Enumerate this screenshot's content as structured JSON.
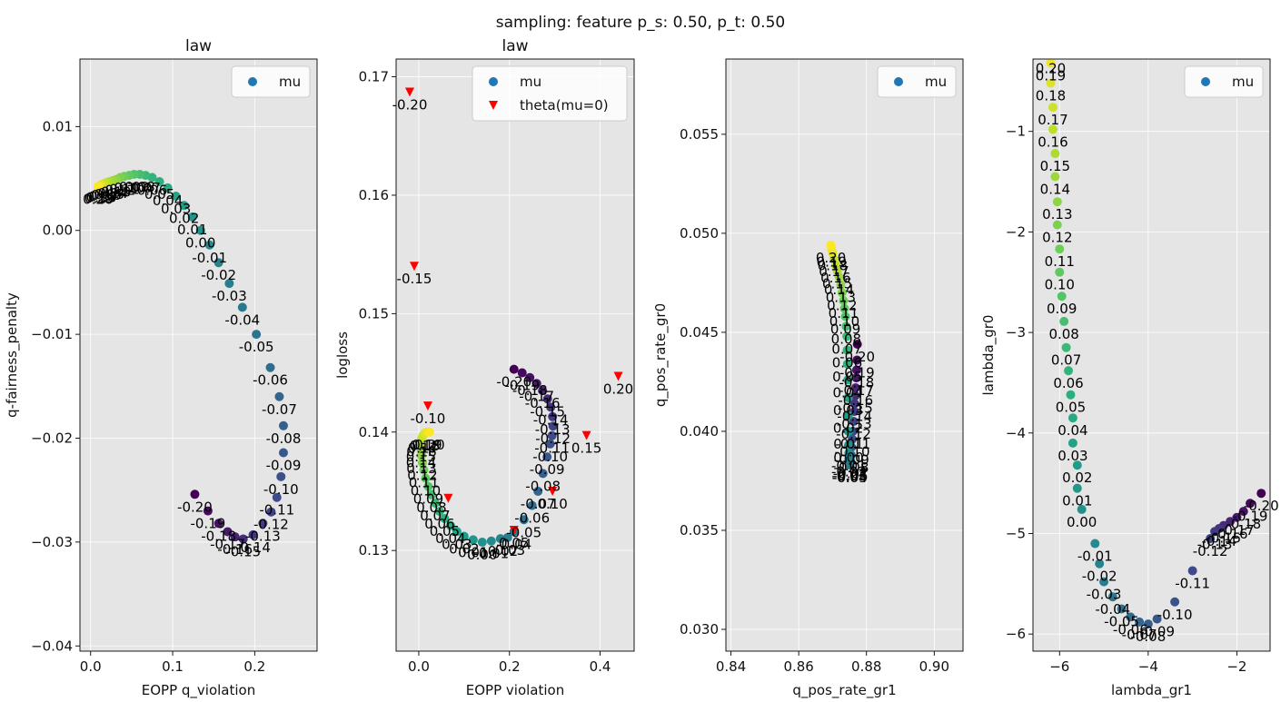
{
  "suptitle": "sampling: feature p_s: 0.50, p_t: 0.50",
  "colors": {
    "panel_bg": "#e5e5e5",
    "grid": "#ffffff",
    "legend_mu": "#1f77b4",
    "theta": "#ff0000",
    "colormap": "viridis"
  },
  "chart_data": [
    {
      "type": "scatter",
      "title": "law",
      "xlabel": "EOPP q_violation",
      "ylabel": "q-fairness_penalty",
      "xlim": [
        -0.013,
        0.276
      ],
      "ylim": [
        -0.0405,
        0.0165
      ],
      "xticks": [
        0.0,
        0.1,
        0.2
      ],
      "xticklabels": [
        "0.0",
        "0.1",
        "0.2"
      ],
      "yticks": [
        -0.04,
        -0.03,
        -0.02,
        -0.01,
        0.0,
        0.01
      ],
      "yticklabels": [
        "−0.04",
        "−0.03",
        "−0.02",
        "−0.01",
        "0.00",
        "0.01"
      ],
      "grid": true,
      "legend": {
        "location": "upper right",
        "entries": [
          "mu"
        ]
      },
      "series": [
        {
          "name": "mu",
          "marker": "circle",
          "mu": [
            -0.2,
            -0.19,
            -0.18,
            -0.17,
            -0.16,
            -0.15,
            -0.14,
            -0.13,
            -0.12,
            -0.11,
            -0.1,
            -0.09,
            -0.08,
            -0.07,
            -0.06,
            -0.05,
            -0.04,
            -0.03,
            -0.02,
            -0.01,
            0.0,
            0.01,
            0.02,
            0.03,
            0.04,
            0.05,
            0.06,
            0.07,
            0.08,
            0.09,
            0.1,
            0.11,
            0.12,
            0.13,
            0.14,
            0.15,
            0.16,
            0.17,
            0.18,
            0.19,
            0.2
          ],
          "x": [
            0.127,
            0.143,
            0.156,
            0.167,
            0.176,
            0.186,
            0.198,
            0.21,
            0.22,
            0.227,
            0.232,
            0.235,
            0.235,
            0.23,
            0.219,
            0.202,
            0.185,
            0.169,
            0.156,
            0.145,
            0.134,
            0.124,
            0.114,
            0.104,
            0.094,
            0.084,
            0.075,
            0.067,
            0.06,
            0.053,
            0.047,
            0.041,
            0.036,
            0.031,
            0.027,
            0.023,
            0.019,
            0.016,
            0.013,
            0.011,
            0.009
          ],
          "y": [
            -0.0254,
            -0.027,
            -0.0282,
            -0.029,
            -0.0295,
            -0.0297,
            -0.0293,
            -0.0282,
            -0.0271,
            -0.0257,
            -0.0237,
            -0.0214,
            -0.0188,
            -0.016,
            -0.0132,
            -0.01,
            -0.0074,
            -0.0051,
            -0.0031,
            -0.0014,
            0.0,
            0.0013,
            0.0024,
            0.0033,
            0.0041,
            0.0047,
            0.0051,
            0.0053,
            0.0054,
            0.0054,
            0.0053,
            0.0052,
            0.0051,
            0.0049,
            0.0048,
            0.0047,
            0.0046,
            0.0045,
            0.0044,
            0.0043,
            0.0042
          ],
          "labels": [
            "-0.20",
            "-0.19",
            "-0.18",
            "-0.17",
            "-0.16",
            "-0.15",
            "-0.14",
            "-0.13",
            "-0.12",
            "-0.11",
            "-0.10",
            "-0.09",
            "-0.08",
            "-0.07",
            "-0.06",
            "-0.05",
            "-0.04",
            "-0.03",
            "-0.02",
            "-0.01",
            "0.00",
            "0.01",
            "0.02",
            "0.03",
            "0.04",
            "0.05",
            "0.06",
            "0.07",
            "0.08",
            "0.09",
            "0.10",
            "0.11",
            "0.12",
            "0.13",
            "0.14",
            "0.15",
            "0.16",
            "0.17",
            "0.18",
            "0.19",
            "0.20"
          ]
        }
      ]
    },
    {
      "type": "scatter",
      "title": "law",
      "xlabel": "EOPP violation",
      "ylabel": "logloss",
      "xlim": [
        -0.05,
        0.475
      ],
      "ylim": [
        0.1215,
        0.1715
      ],
      "xticks": [
        0.0,
        0.2,
        0.4
      ],
      "xticklabels": [
        "0.0",
        "0.2",
        "0.4"
      ],
      "yticks": [
        0.13,
        0.14,
        0.15,
        0.16,
        0.17
      ],
      "yticklabels": [
        "0.13",
        "0.14",
        "0.15",
        "0.16",
        "0.17"
      ],
      "grid": true,
      "legend": {
        "location": "upper right",
        "entries": [
          "mu",
          "theta(mu=0)"
        ]
      },
      "series": [
        {
          "name": "mu",
          "marker": "circle",
          "mu": [
            -0.2,
            -0.19,
            -0.18,
            -0.17,
            -0.16,
            -0.15,
            -0.14,
            -0.13,
            -0.12,
            -0.11,
            -0.1,
            -0.09,
            -0.08,
            -0.07,
            -0.06,
            -0.05,
            -0.04,
            -0.03,
            -0.02,
            -0.01,
            0.0,
            0.01,
            0.02,
            0.03,
            0.04,
            0.05,
            0.06,
            0.07,
            0.08,
            0.09,
            0.1,
            0.11,
            0.12,
            0.13,
            0.14,
            0.15,
            0.16,
            0.17,
            0.18,
            0.19,
            0.2
          ],
          "x": [
            0.21,
            0.228,
            0.245,
            0.26,
            0.273,
            0.284,
            0.291,
            0.295,
            0.296,
            0.294,
            0.29,
            0.283,
            0.274,
            0.263,
            0.25,
            0.232,
            0.21,
            0.196,
            0.18,
            0.16,
            0.14,
            0.12,
            0.1,
            0.084,
            0.07,
            0.057,
            0.046,
            0.036,
            0.028,
            0.021,
            0.015,
            0.011,
            0.008,
            0.006,
            0.005,
            0.005,
            0.006,
            0.009,
            0.013,
            0.018,
            0.024
          ],
          "y": [
            0.1453,
            0.145,
            0.1446,
            0.1441,
            0.1435,
            0.1428,
            0.1421,
            0.1413,
            0.1405,
            0.1397,
            0.139,
            0.1379,
            0.1365,
            0.135,
            0.1338,
            0.1326,
            0.1316,
            0.1311,
            0.131,
            0.1308,
            0.1307,
            0.1309,
            0.1312,
            0.1316,
            0.1321,
            0.1327,
            0.1333,
            0.134,
            0.1347,
            0.1354,
            0.1361,
            0.1368,
            0.1374,
            0.138,
            0.1385,
            0.139,
            0.1394,
            0.1397,
            0.1399,
            0.14,
            0.14
          ],
          "labels": [
            "-0.20",
            "-0.19",
            "-0.18",
            "-0.17",
            "-0.16",
            "-0.15",
            "-0.14",
            "-0.13",
            "-0.12",
            "-0.11",
            "-0.10",
            "-0.09",
            "-0.08",
            "-0.07",
            "-0.06",
            "-0.05",
            "-0.04",
            "-0.03",
            "-0.02",
            "-0.01",
            "0.00",
            "0.01",
            "0.02",
            "0.03",
            "0.04",
            "0.05",
            "0.06",
            "0.07",
            "0.08",
            "0.09",
            "0.10",
            "0.11",
            "0.12",
            "0.13",
            "0.14",
            "0.15",
            "0.16",
            "0.17",
            "0.18",
            "0.19",
            "0.20"
          ]
        },
        {
          "name": "theta(mu=0)",
          "marker": "triangle-down",
          "x": [
            -0.02,
            -0.01,
            0.02,
            0.065,
            0.21,
            0.295,
            0.37,
            0.44
          ],
          "y": [
            0.1687,
            0.154,
            0.1422,
            0.1344,
            0.1317,
            0.135,
            0.1397,
            0.1447
          ],
          "labels": [
            "-0.20",
            "-0.15",
            "-0.10",
            "",
            "0.05",
            "0.10",
            "0.15",
            "0.20"
          ]
        }
      ]
    },
    {
      "type": "scatter",
      "title": "",
      "xlabel": "q_pos_rate_gr1",
      "ylabel": "q_pos_rate_gr0",
      "xlim": [
        0.8385,
        0.9085
      ],
      "ylim": [
        0.0289,
        0.0588
      ],
      "xticks": [
        0.84,
        0.86,
        0.88,
        0.9
      ],
      "xticklabels": [
        "0.84",
        "0.86",
        "0.88",
        "0.90"
      ],
      "yticks": [
        0.03,
        0.035,
        0.04,
        0.045,
        0.05,
        0.055
      ],
      "yticklabels": [
        "0.030",
        "0.035",
        "0.040",
        "0.045",
        "0.050",
        "0.055"
      ],
      "grid": true,
      "legend": {
        "location": "upper right",
        "entries": [
          "mu"
        ]
      },
      "series": [
        {
          "name": "mu",
          "marker": "circle",
          "mu": [
            -0.2,
            -0.19,
            -0.18,
            -0.17,
            -0.16,
            -0.15,
            -0.14,
            -0.13,
            -0.12,
            -0.11,
            -0.1,
            -0.09,
            -0.08,
            -0.07,
            -0.06,
            -0.05,
            -0.04,
            -0.03,
            -0.02,
            -0.01,
            0.0,
            0.01,
            0.02,
            0.03,
            0.04,
            0.05,
            0.06,
            0.07,
            0.08,
            0.09,
            0.1,
            0.11,
            0.12,
            0.13,
            0.14,
            0.15,
            0.16,
            0.17,
            0.18,
            0.19,
            0.2
          ],
          "x": [
            0.8773,
            0.8772,
            0.8771,
            0.877,
            0.8768,
            0.8767,
            0.8765,
            0.8764,
            0.8762,
            0.876,
            0.8758,
            0.8756,
            0.8755,
            0.8753,
            0.8752,
            0.8751,
            0.875,
            0.8749,
            0.8748,
            0.8748,
            0.8747,
            0.8747,
            0.8746,
            0.8746,
            0.8745,
            0.8744,
            0.8743,
            0.8742,
            0.874,
            0.8738,
            0.8735,
            0.8732,
            0.8728,
            0.8724,
            0.8719,
            0.8714,
            0.8709,
            0.8704,
            0.87,
            0.8697,
            0.8695
          ],
          "y": [
            0.0444,
            0.0436,
            0.0431,
            0.0427,
            0.0422,
            0.0418,
            0.0414,
            0.041,
            0.0405,
            0.04,
            0.0396,
            0.0392,
            0.0388,
            0.0385,
            0.0384,
            0.0383,
            0.0383,
            0.0384,
            0.0386,
            0.0389,
            0.0393,
            0.04,
            0.0408,
            0.0417,
            0.0426,
            0.0434,
            0.0441,
            0.0448,
            0.0453,
            0.0458,
            0.0462,
            0.0466,
            0.047,
            0.0474,
            0.0478,
            0.0481,
            0.0484,
            0.0487,
            0.049,
            0.0492,
            0.0494
          ],
          "labels": [
            "-0.20",
            "-0.19",
            "-0.18",
            "-0.17",
            "-0.16",
            "-0.15",
            "-0.14",
            "-0.13",
            "-0.12",
            "-0.11",
            "-0.10",
            "-0.09",
            "-0.08",
            "-0.07",
            "-0.06",
            "-0.05",
            "-0.04",
            "-0.03",
            "-0.02",
            "-0.01",
            "0.00",
            "0.01",
            "0.02",
            "0.03",
            "0.04",
            "0.05",
            "0.06",
            "0.07",
            "0.08",
            "0.09",
            "0.10",
            "0.11",
            "0.12",
            "0.13",
            "0.14",
            "0.15",
            "0.16",
            "0.17",
            "0.18",
            "0.19",
            "0.20"
          ]
        }
      ]
    },
    {
      "type": "scatter",
      "title": "",
      "xlabel": "lambda_gr1",
      "ylabel": "lambda_gr0",
      "xlim": [
        -6.6,
        -1.25
      ],
      "ylim": [
        -6.17,
        -0.28
      ],
      "xticks": [
        -6,
        -4,
        -2
      ],
      "xticklabels": [
        "−6",
        "−4",
        "−2"
      ],
      "yticks": [
        -6,
        -5,
        -4,
        -3,
        -2,
        -1
      ],
      "yticklabels": [
        "−6",
        "−5",
        "−4",
        "−3",
        "−2",
        "−1"
      ],
      "grid": true,
      "legend": {
        "location": "upper right",
        "entries": [
          "mu"
        ]
      },
      "series": [
        {
          "name": "mu",
          "marker": "circle",
          "mu": [
            -0.2,
            -0.19,
            -0.18,
            -0.17,
            -0.16,
            -0.15,
            -0.14,
            -0.13,
            -0.12,
            -0.11,
            -0.1,
            -0.09,
            -0.08,
            -0.07,
            -0.06,
            -0.05,
            -0.04,
            -0.03,
            -0.02,
            -0.01,
            0.0,
            0.01,
            0.02,
            0.03,
            0.04,
            0.05,
            0.06,
            0.07,
            0.08,
            0.09,
            0.1,
            0.11,
            0.12,
            0.13,
            0.14,
            0.15,
            0.16,
            0.17,
            0.18,
            0.19,
            0.2
          ],
          "x": [
            -1.45,
            -1.7,
            -1.85,
            -2.0,
            -2.15,
            -2.3,
            -2.4,
            -2.5,
            -2.6,
            -3.0,
            -3.4,
            -3.8,
            -4.0,
            -4.2,
            -4.4,
            -4.6,
            -4.8,
            -5.0,
            -5.1,
            -5.2,
            -5.5,
            -5.6,
            -5.6,
            -5.7,
            -5.7,
            -5.75,
            -5.8,
            -5.85,
            -5.9,
            -5.95,
            -6.0,
            -6.0,
            -6.05,
            -6.05,
            -6.1,
            -6.1,
            -6.15,
            -6.15,
            -6.2,
            -6.2,
            -6.2
          ],
          "y": [
            -4.6,
            -4.7,
            -4.78,
            -4.84,
            -4.88,
            -4.92,
            -4.95,
            -4.98,
            -5.05,
            -5.37,
            -5.68,
            -5.85,
            -5.9,
            -5.88,
            -5.83,
            -5.75,
            -5.63,
            -5.48,
            -5.3,
            -5.1,
            -4.76,
            -4.55,
            -4.32,
            -4.1,
            -3.85,
            -3.62,
            -3.38,
            -3.15,
            -2.89,
            -2.64,
            -2.4,
            -2.17,
            -1.93,
            -1.7,
            -1.45,
            -1.22,
            -0.98,
            -0.76,
            -0.52,
            -0.32,
            -0.25
          ],
          "labels": [
            "-0.20",
            "-0.19",
            "-0.18",
            "-0.17",
            "-0.16",
            "-0.15",
            "-0.14",
            "-0.13",
            "-0.12",
            "-0.11",
            "-0.10",
            "-0.09",
            "-0.08",
            "-0.07",
            "-0.06",
            "-0.05",
            "-0.04",
            "-0.03",
            "-0.02",
            "-0.01",
            "0.00",
            "0.01",
            "0.02",
            "0.03",
            "0.04",
            "0.05",
            "0.06",
            "0.07",
            "0.08",
            "0.09",
            "0.10",
            "0.11",
            "0.12",
            "0.13",
            "0.14",
            "0.15",
            "0.16",
            "0.17",
            "0.18",
            "0.19",
            "0.20"
          ]
        }
      ]
    }
  ]
}
